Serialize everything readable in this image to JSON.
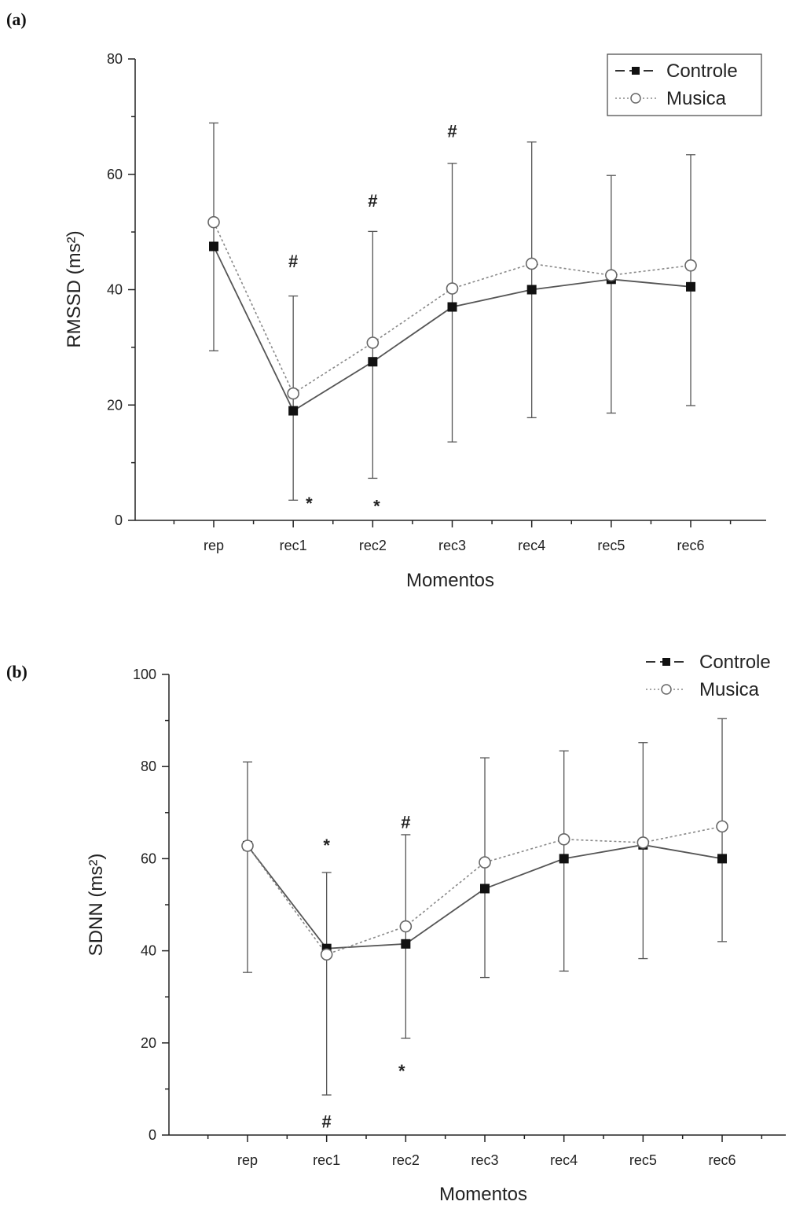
{
  "chart_data": [
    {
      "type": "line",
      "panel_label": "(a)",
      "categories": [
        "rep",
        "rec1",
        "rec2",
        "rec3",
        "rec4",
        "rec5",
        "rec6"
      ],
      "xlabel": "Momentos",
      "ylabel": "RMSSD  (ms²)",
      "ylim": [
        0,
        80
      ],
      "yticks": [
        0,
        20,
        40,
        60,
        80
      ],
      "grid": false,
      "legend_position": "top-right",
      "series": [
        {
          "name": "Controle",
          "marker": "filled-square",
          "line": "solid",
          "color": "#333333",
          "values": [
            47.5,
            19.0,
            27.5,
            37.0,
            40.0,
            41.8,
            40.5
          ]
        },
        {
          "name": "Musica",
          "marker": "open-circle",
          "line": "dotted",
          "color": "#777777",
          "values": [
            51.7,
            22.0,
            30.8,
            40.2,
            44.5,
            42.5,
            44.2
          ],
          "error_upper": [
            68.9,
            38.9,
            50.1,
            61.9,
            65.6,
            59.8,
            63.4
          ],
          "error_lower": [
            29.4,
            3.5,
            7.3,
            13.6,
            17.8,
            18.6,
            19.9
          ]
        }
      ],
      "annotations": [
        {
          "text": "#",
          "category": "rec1",
          "y": 45.0
        },
        {
          "text": "#",
          "category": "rec2",
          "y": 55.5
        },
        {
          "text": "#",
          "category": "rec3",
          "y": 67.5
        },
        {
          "text": "*",
          "category": "rec1",
          "offset": 0.2,
          "y": 3.0
        },
        {
          "text": "*",
          "category": "rec2",
          "offset": 0.05,
          "y": 2.5
        }
      ]
    },
    {
      "type": "line",
      "panel_label": "(b)",
      "categories": [
        "rep",
        "rec1",
        "rec2",
        "rec3",
        "rec4",
        "rec5",
        "rec6"
      ],
      "xlabel": "Momentos",
      "ylabel": "SDNN  (ms²)",
      "ylim": [
        0,
        100
      ],
      "yticks": [
        0,
        20,
        40,
        60,
        80,
        100
      ],
      "grid": false,
      "legend_position": "top-right",
      "series": [
        {
          "name": "Controle",
          "marker": "filled-square",
          "line": "solid",
          "color": "#333333",
          "values": [
            62.8,
            40.5,
            41.5,
            53.5,
            60.0,
            63.0,
            60.0
          ]
        },
        {
          "name": "Musica",
          "marker": "open-circle",
          "line": "dotted",
          "color": "#777777",
          "values": [
            62.8,
            39.2,
            45.3,
            59.2,
            64.2,
            63.5,
            67.0
          ],
          "error_upper": [
            81.0,
            57.0,
            65.2,
            81.9,
            83.4,
            85.2,
            90.4
          ],
          "error_lower": [
            35.3,
            8.7,
            21.0,
            34.2,
            35.6,
            38.3,
            42.0
          ]
        }
      ],
      "annotations": [
        {
          "text": "*",
          "category": "rec1",
          "y": 63.0
        },
        {
          "text": "#",
          "category": "rec2",
          "y": 68.0
        },
        {
          "text": "*",
          "category": "rec2",
          "offset": -0.05,
          "y": 14.0
        },
        {
          "text": "#",
          "category": "rec1",
          "y": 3.0
        }
      ]
    }
  ]
}
